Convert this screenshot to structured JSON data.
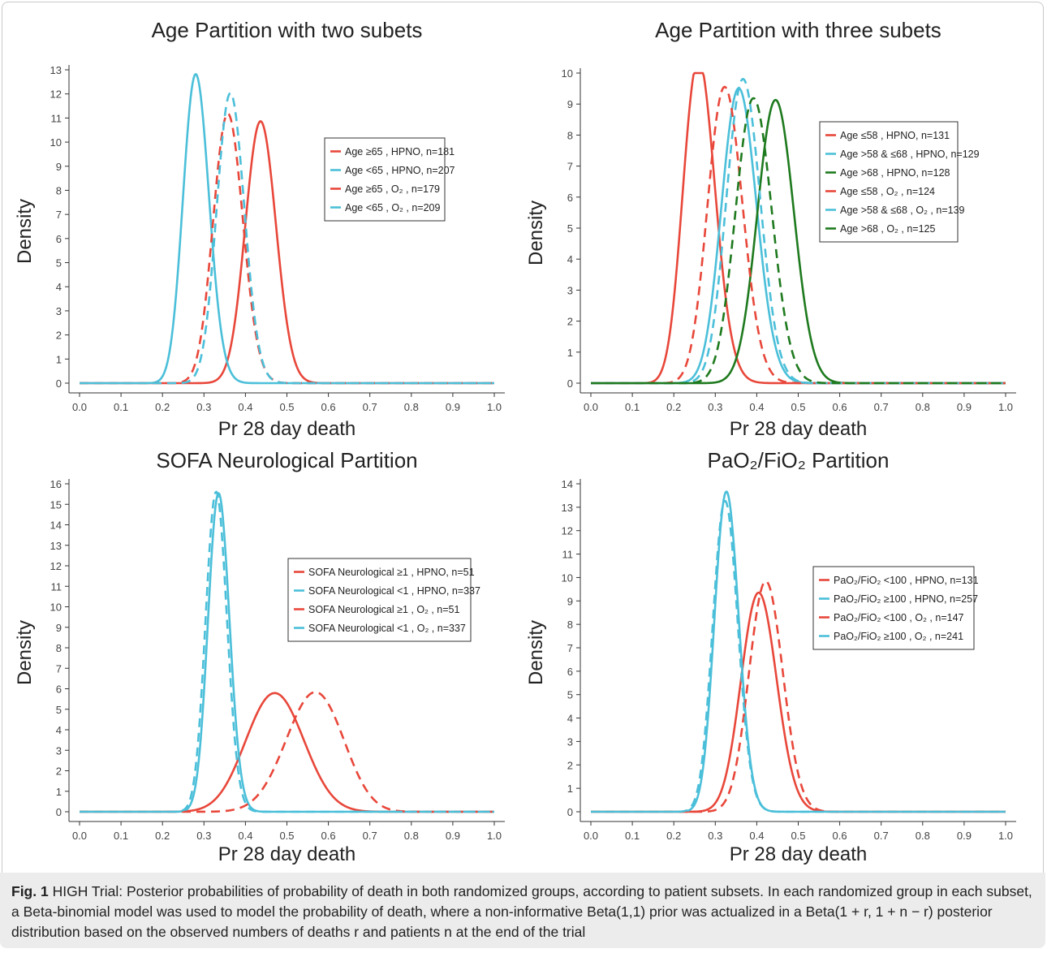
{
  "figure_label": "Fig. 1",
  "caption": "HIGH Trial: Posterior probabilities of probability of death in both randomized groups, according to patient subsets. In each randomized group in each subset, a Beta-binomial model was used to model the probability of death, where a non-informative Beta(1,1) prior was actualized in a Beta(1 + r, 1 + n − r) posterior distribution based on the observed numbers of deaths r and patients n at the end of the trial",
  "colors": {
    "red": "#e8473a",
    "blue": "#4bbfd9",
    "green": "#1e7a1e",
    "axis": "#333333"
  },
  "chart_data": [
    {
      "type": "line",
      "title": "Age Partition with two subets",
      "xlabel": "Pr 28 day death",
      "ylabel": "Density",
      "xlim": [
        0,
        1
      ],
      "ylim": [
        0,
        13
      ],
      "xticks": [
        "0.0",
        "0.1",
        "0.2",
        "0.3",
        "0.4",
        "0.5",
        "0.6",
        "0.7",
        "0.8",
        "0.9",
        "1.0"
      ],
      "yticks": [
        "0",
        "1",
        "2",
        "3",
        "4",
        "5",
        "6",
        "7",
        "8",
        "9",
        "10",
        "11",
        "12",
        "13"
      ],
      "legend_position": "right",
      "series": [
        {
          "name": "Age ≥65 , HPNO, n=181",
          "color": "red",
          "dash": false,
          "r": 79,
          "n": 181
        },
        {
          "name": "Age <65 , HPNO, n=207",
          "color": "blue",
          "dash": false,
          "r": 58,
          "n": 207
        },
        {
          "name": "Age ≥65 , O₂ , n=179",
          "color": "red",
          "dash": true,
          "r": 64,
          "n": 179
        },
        {
          "name": "Age <65 , O₂ , n=209",
          "color": "blue",
          "dash": true,
          "r": 76,
          "n": 209
        }
      ]
    },
    {
      "type": "line",
      "title": "Age Partition with three subets",
      "xlabel": "Pr 28 day death",
      "ylabel": "Density",
      "xlim": [
        0,
        1
      ],
      "ylim": [
        0,
        10
      ],
      "xticks": [
        "0.0",
        "0.1",
        "0.2",
        "0.3",
        "0.4",
        "0.5",
        "0.6",
        "0.7",
        "0.8",
        "0.9",
        "1.0"
      ],
      "yticks": [
        "0",
        "1",
        "2",
        "3",
        "4",
        "5",
        "6",
        "7",
        "8",
        "9",
        "10"
      ],
      "legend_position": "right",
      "series": [
        {
          "name": "Age ≤58 , HPNO, n=131",
          "color": "red",
          "dash": false,
          "r": 34,
          "n": 131
        },
        {
          "name": "Age >58 & ≤68 , HPNO, n=129",
          "color": "blue",
          "dash": false,
          "r": 46,
          "n": 129
        },
        {
          "name": "Age >68 , HPNO, n=128",
          "color": "green",
          "dash": false,
          "r": 57,
          "n": 128
        },
        {
          "name": "Age ≤58 , O₂ , n=124",
          "color": "red",
          "dash": true,
          "r": 40,
          "n": 124
        },
        {
          "name": "Age >58 & ≤68 , O₂ , n=139",
          "color": "blue",
          "dash": true,
          "r": 51,
          "n": 139
        },
        {
          "name": "Age >68 , O₂ , n=125",
          "color": "green",
          "dash": true,
          "r": 49,
          "n": 125
        }
      ]
    },
    {
      "type": "line",
      "title": "SOFA Neurological Partition",
      "xlabel": "Pr 28 day death",
      "ylabel": "Density",
      "xlim": [
        0,
        1
      ],
      "ylim": [
        0,
        16
      ],
      "xticks": [
        "0.0",
        "0.1",
        "0.2",
        "0.3",
        "0.4",
        "0.5",
        "0.6",
        "0.7",
        "0.8",
        "0.9",
        "1.0"
      ],
      "yticks": [
        "0",
        "1",
        "2",
        "3",
        "4",
        "5",
        "6",
        "7",
        "8",
        "9",
        "10",
        "11",
        "12",
        "13",
        "14",
        "15",
        "16"
      ],
      "legend_position": "right",
      "series": [
        {
          "name": "SOFA Neurological ≥1 , HPNO, n=51",
          "color": "red",
          "dash": false,
          "r": 24,
          "n": 51
        },
        {
          "name": "SOFA Neurological <1 , HPNO, n=337",
          "color": "blue",
          "dash": false,
          "r": 113,
          "n": 337
        },
        {
          "name": "SOFA Neurological ≥1 , O₂ , n=51",
          "color": "red",
          "dash": true,
          "r": 29,
          "n": 51
        },
        {
          "name": "SOFA Neurological <1 , O₂ , n=337",
          "color": "blue",
          "dash": true,
          "r": 111,
          "n": 337
        }
      ]
    },
    {
      "type": "line",
      "title": "PaO₂/FiO₂ Partition",
      "xlabel": "Pr 28 day death",
      "ylabel": "Density",
      "xlim": [
        0,
        1
      ],
      "ylim": [
        0,
        14
      ],
      "xticks": [
        "0.0",
        "0.1",
        "0.2",
        "0.3",
        "0.4",
        "0.5",
        "0.6",
        "0.7",
        "0.8",
        "0.9",
        "1.0"
      ],
      "yticks": [
        "0",
        "1",
        "2",
        "3",
        "4",
        "5",
        "6",
        "7",
        "8",
        "9",
        "10",
        "11",
        "12",
        "13",
        "14"
      ],
      "legend_position": "right",
      "series": [
        {
          "name": "PaO₂/FiO₂ <100 , HPNO, n=131",
          "color": "red",
          "dash": false,
          "r": 53,
          "n": 131
        },
        {
          "name": "PaO₂/FiO₂ ≥100 , HPNO, n=257",
          "color": "blue",
          "dash": false,
          "r": 84,
          "n": 257
        },
        {
          "name": "PaO₂/FiO₂ <100 , O₂ , n=147",
          "color": "red",
          "dash": true,
          "r": 62,
          "n": 147
        },
        {
          "name": "PaO₂/FiO₂ ≥100 , O₂ , n=241",
          "color": "blue",
          "dash": true,
          "r": 78,
          "n": 241
        }
      ]
    }
  ]
}
